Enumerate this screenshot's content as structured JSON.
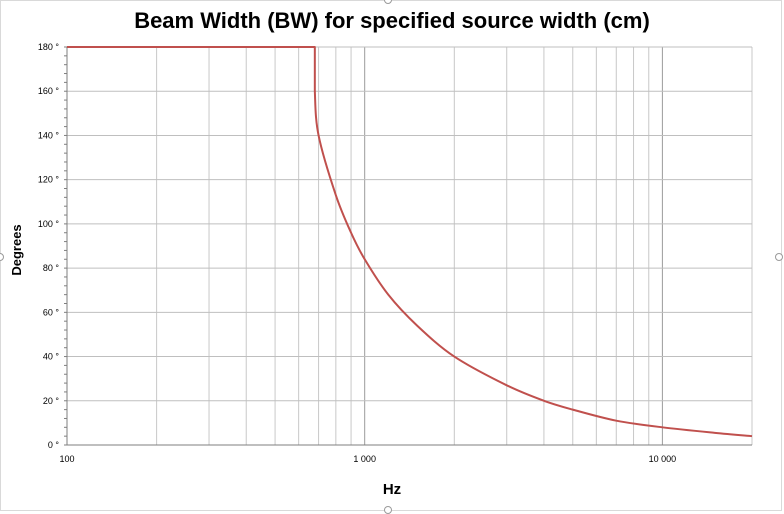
{
  "chart_data": {
    "type": "line",
    "title": "Beam Width (BW) for specified source width (cm)",
    "xlabel": "Hz",
    "ylabel": "Degrees",
    "x_scale": "log",
    "xlim": [
      100,
      20000
    ],
    "ylim": [
      0,
      180
    ],
    "x_ticks": [
      100,
      1000,
      10000
    ],
    "x_tick_labels": [
      "100",
      "1 000",
      "10 000"
    ],
    "y_ticks": [
      0,
      20,
      40,
      60,
      80,
      100,
      120,
      140,
      160,
      180
    ],
    "y_tick_labels": [
      "0 °",
      "20 °",
      "40 °",
      "60 °",
      "80 °",
      "100 °",
      "120 °",
      "140 °",
      "160 °",
      "180 °"
    ],
    "grid": true,
    "legend": "none",
    "series": [
      {
        "color": "#c0504d",
        "x": [
          100,
          200,
          400,
          600,
          680,
          680,
          700,
          800,
          900,
          1000,
          1200,
          1500,
          2000,
          3000,
          4000,
          5000,
          7000,
          10000,
          15000,
          20000
        ],
        "y": [
          180,
          180,
          180,
          180,
          180,
          160,
          140,
          113,
          96,
          84,
          68,
          54,
          40,
          27,
          20,
          16,
          11,
          8,
          5.5,
          4
        ]
      }
    ]
  }
}
